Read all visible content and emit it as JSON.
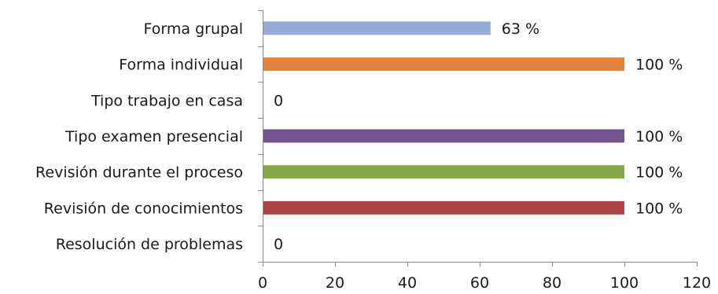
{
  "chart_data": {
    "type": "bar",
    "orientation": "horizontal",
    "categories": [
      "Forma grupal",
      "Forma individual",
      "Tipo trabajo en casa",
      "Tipo examen presencial",
      "Revisión durante el proceso",
      "Revisión de conocimientos",
      "Resolución de problemas"
    ],
    "values": [
      63,
      100,
      0,
      100,
      100,
      100,
      0
    ],
    "data_labels": [
      "63 %",
      "100 %",
      "0",
      "100 %",
      "100 %",
      "100 %",
      "0"
    ],
    "colors": [
      "#95abd4",
      "#e5833a",
      "#9bbb59",
      "#73558e",
      "#89a84e",
      "#ad4443",
      "#4f81bd"
    ],
    "xlim": [
      0,
      120
    ],
    "xticks": [
      0,
      20,
      40,
      60,
      80,
      100,
      120
    ],
    "xtick_labels": [
      "0",
      "20",
      "40",
      "60",
      "80",
      "100",
      "120"
    ],
    "title": "",
    "xlabel": "",
    "ylabel": "",
    "grid": false,
    "legend": false
  }
}
